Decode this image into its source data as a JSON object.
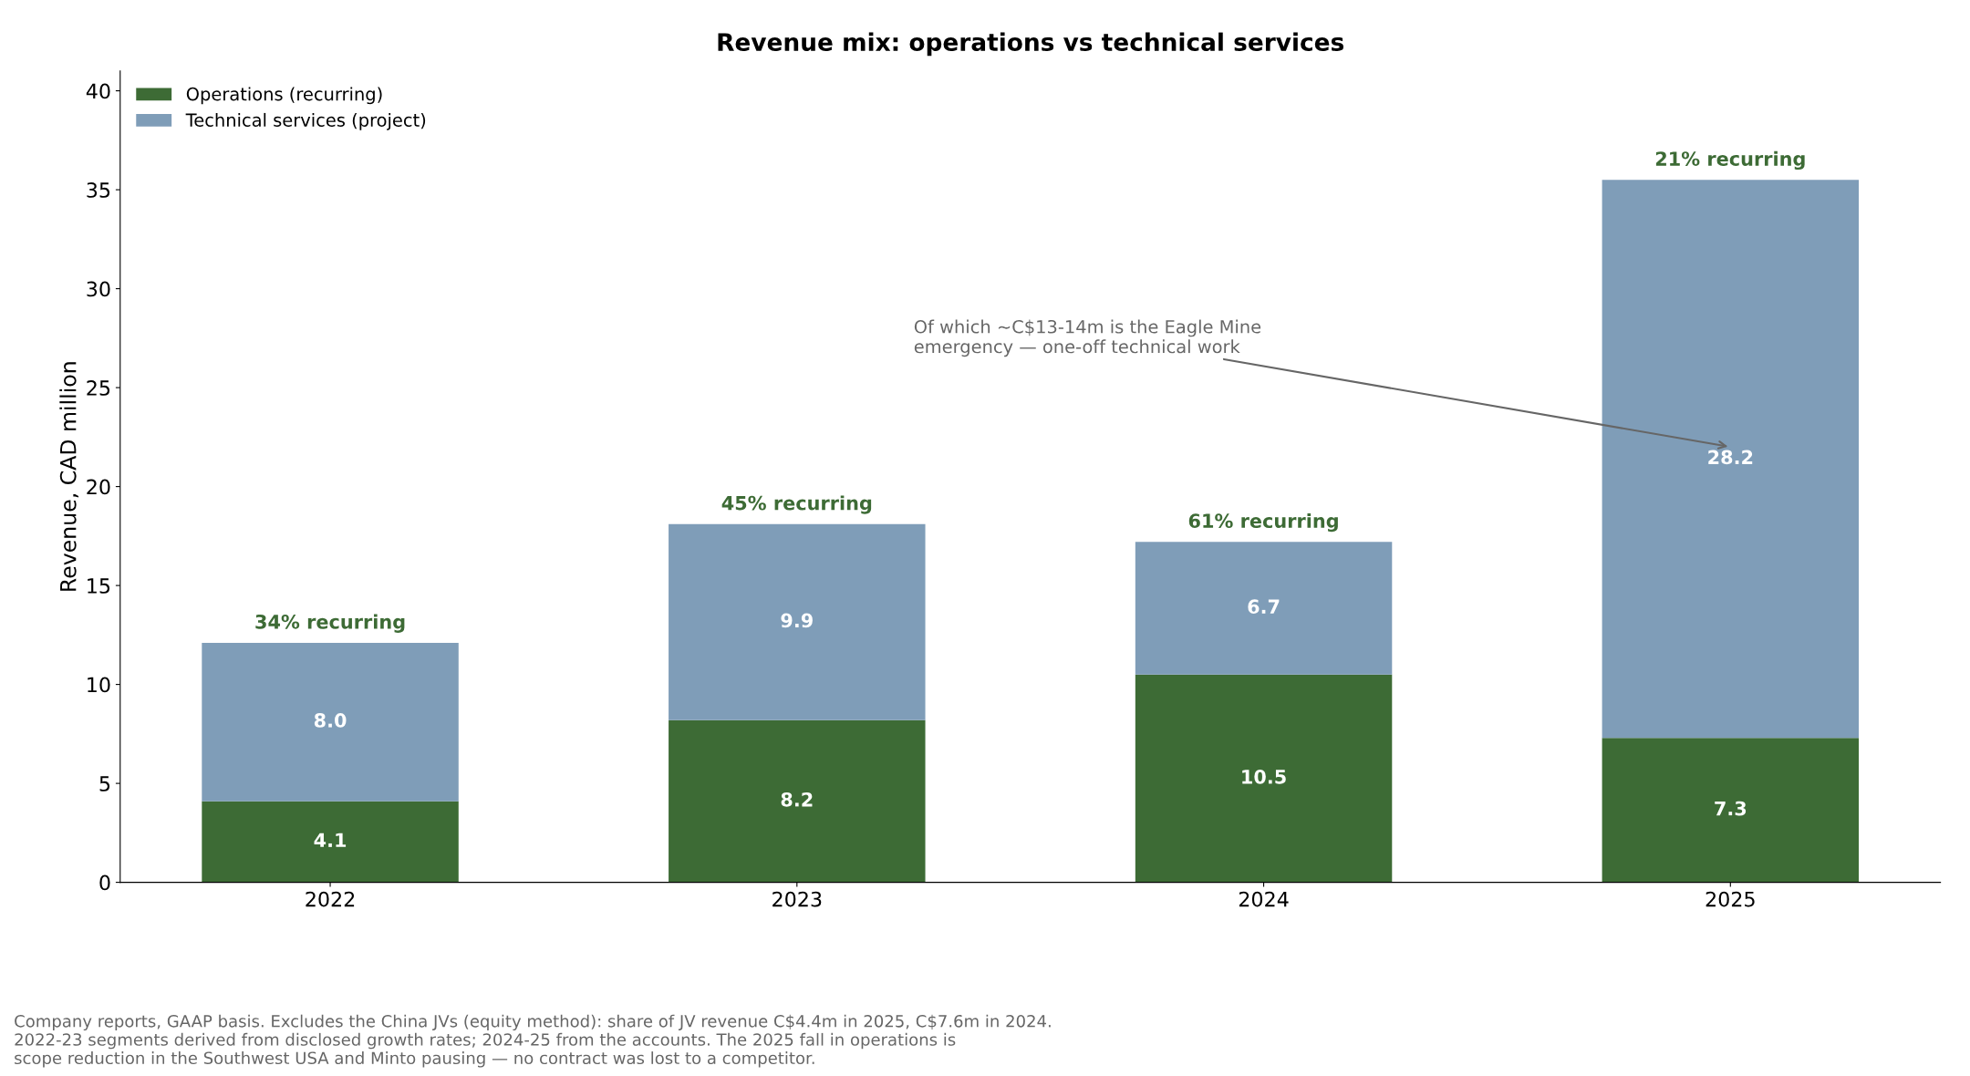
{
  "chart_data": {
    "type": "bar",
    "stacked": true,
    "title": "Revenue mix: operations vs technical services",
    "ylabel": "Revenue, CAD million",
    "categories": [
      "2022",
      "2023",
      "2024",
      "2025"
    ],
    "series": [
      {
        "name": "Operations (recurring)",
        "color": "#3d6b35",
        "values": [
          4.1,
          8.2,
          10.5,
          7.3
        ],
        "value_labels": [
          "4.1",
          "8.2",
          "10.5",
          "7.3"
        ]
      },
      {
        "name": "Technical services (project)",
        "color": "#7f9db8",
        "values": [
          8.0,
          9.9,
          6.7,
          28.2
        ],
        "value_labels": [
          "8.0",
          "9.9",
          "6.7",
          "28.2"
        ]
      }
    ],
    "ylim": [
      0,
      41
    ],
    "yticks": [
      0,
      5,
      10,
      15,
      20,
      25,
      30,
      35,
      40
    ],
    "legend": "top left",
    "grid": false,
    "annotations": [
      {
        "text": "34% recurring",
        "x": "2022",
        "y": 12.1
      },
      {
        "text": "45% recurring",
        "x": "2023",
        "y": 18.1
      },
      {
        "text": "61% recurring",
        "x": "2024",
        "y": 17.2
      },
      {
        "text": "21% recurring",
        "x": "2025",
        "y": 35.5
      },
      "Of which ~C$13-14m is the Eagle Mine\nemergency — one-off technical work",
      "Company reports, GAAP basis. Excludes the China JVs (equity method): share of JV revenue C$4.4m in 2025, C$7.6m in 2024.\n2022-23 segments derived from disclosed growth rates; 2024-25 from the accounts. The 2025 fall in operations is\nscope reduction in the Southwest USA and Minto pausing — no contract was lost to a competitor."
    ]
  }
}
